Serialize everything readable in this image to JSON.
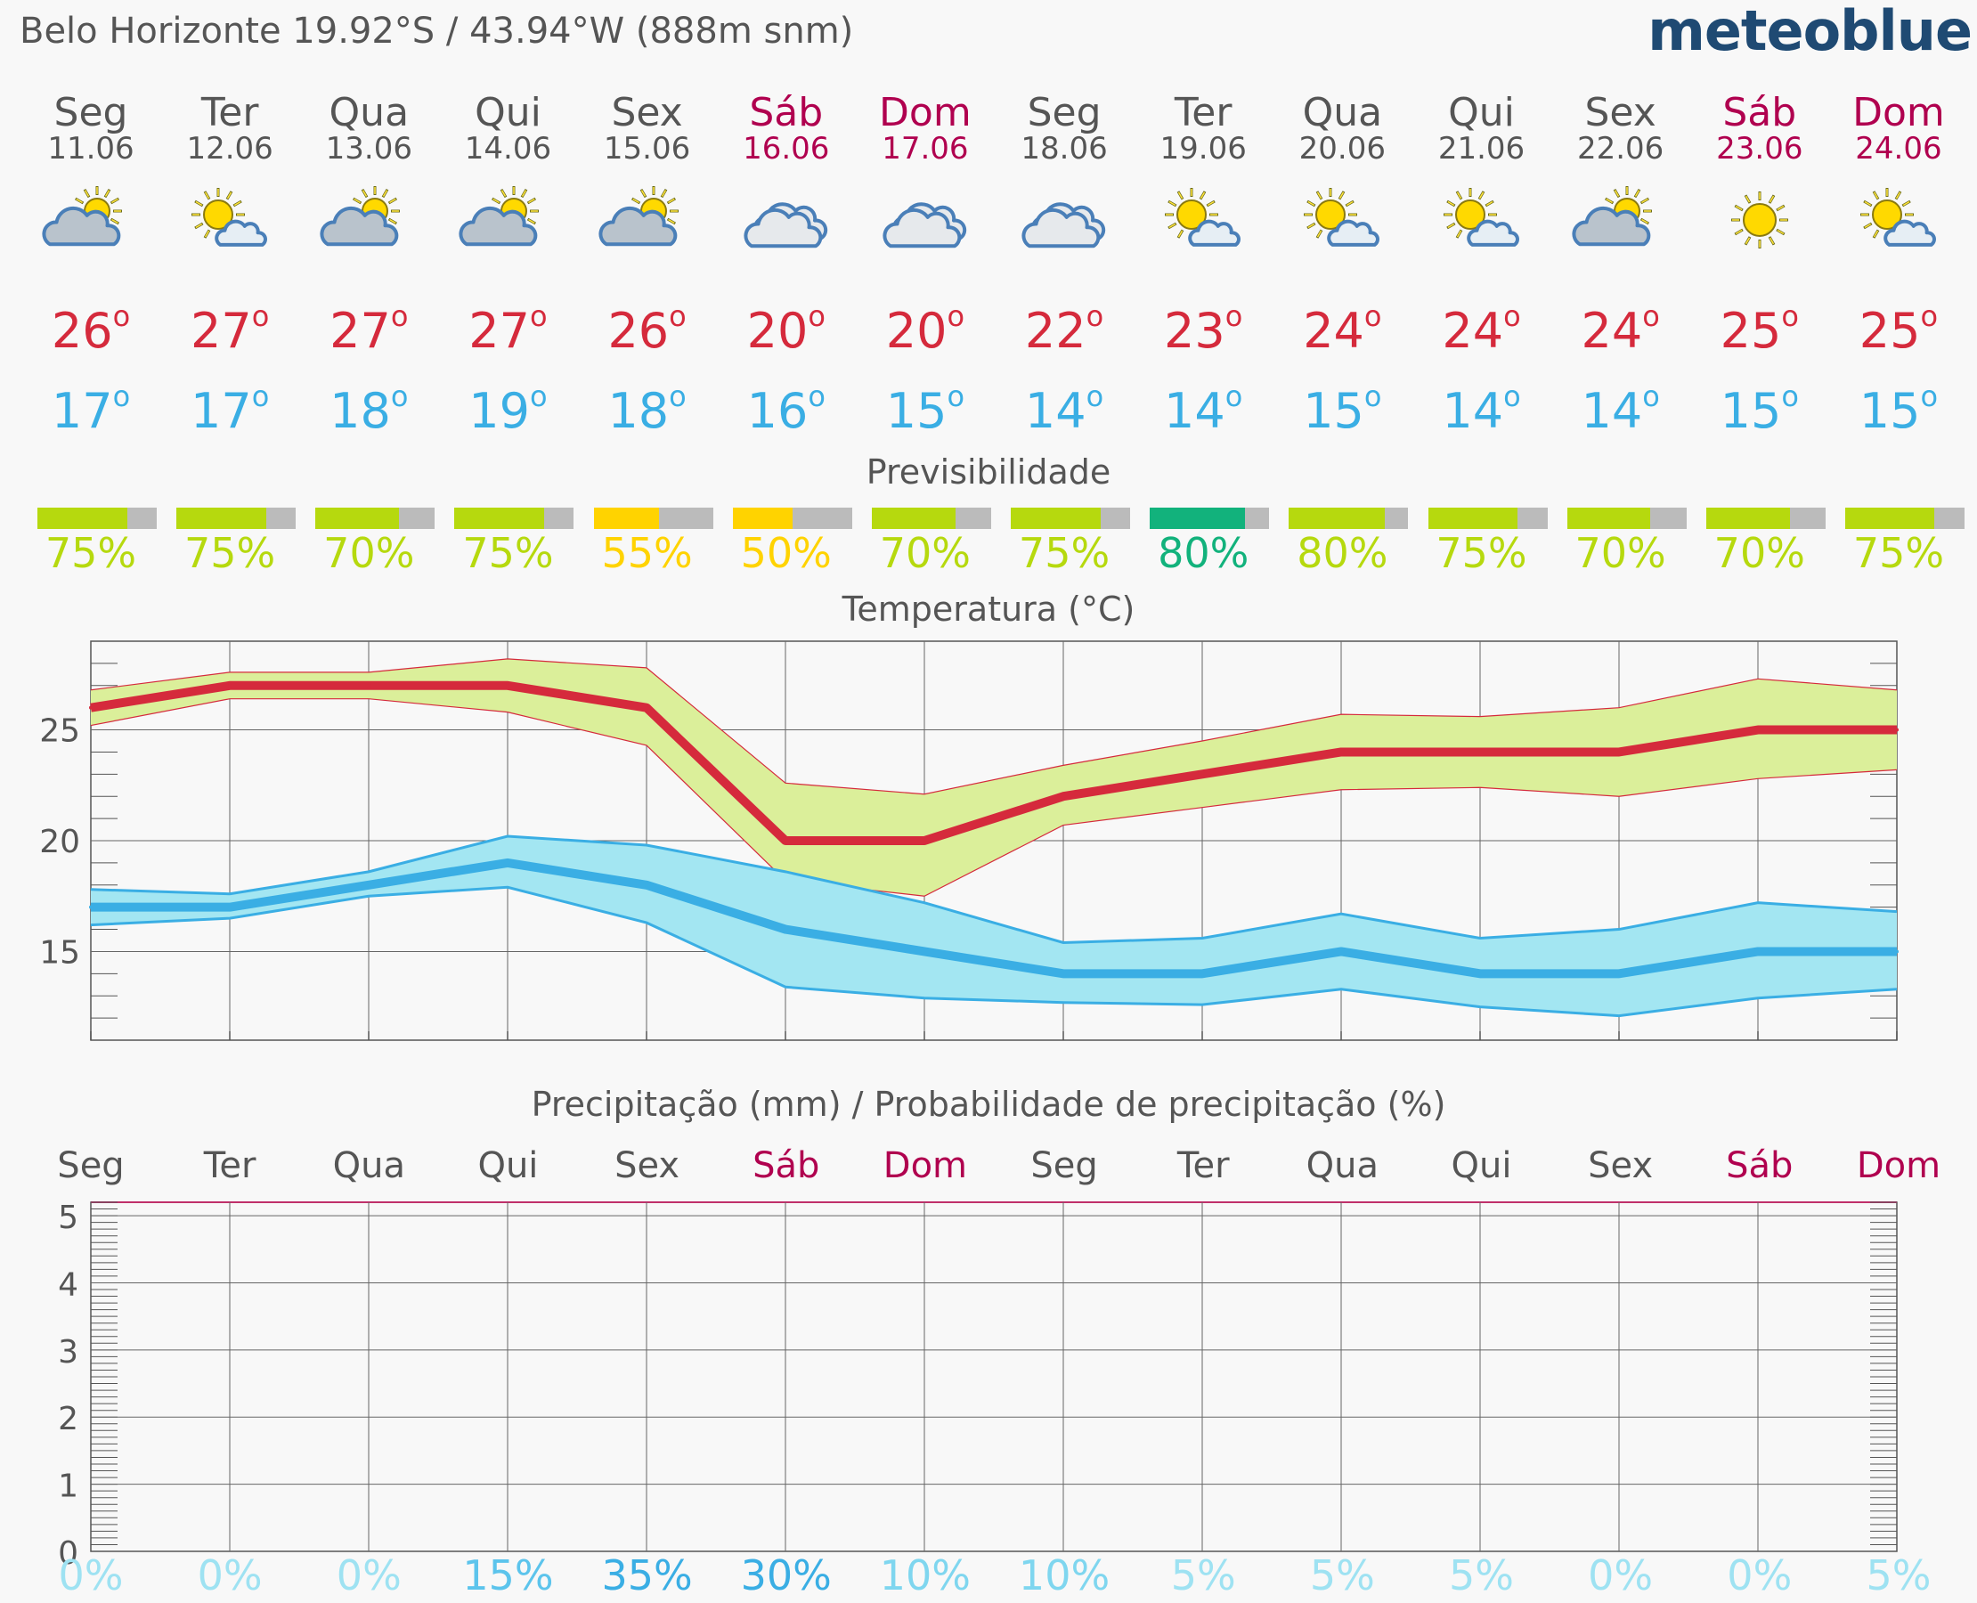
{
  "header": {
    "location": "Belo Horizonte  19.92°S / 43.94°W (888m snm)",
    "brand": "meteoblue"
  },
  "colors": {
    "weekend": "#b0004f",
    "tmax": "#d52a3c",
    "tmin": "#3aaee4",
    "brand": "#1f4a73"
  },
  "days": [
    {
      "name": "Seg",
      "date": "11.06",
      "weekend": false,
      "icon": "partly-cloudy-sun-icon",
      "tmax": "26",
      "tmin": "17",
      "predict": "75%",
      "predict_value": 75,
      "predict_color": "#b6d90e",
      "rain_prob": "0%"
    },
    {
      "name": "Ter",
      "date": "12.06",
      "weekend": false,
      "icon": "sun-small-cloud-icon",
      "tmax": "27",
      "tmin": "17",
      "predict": "75%",
      "predict_value": 75,
      "predict_color": "#b6d90e",
      "rain_prob": "0%"
    },
    {
      "name": "Qua",
      "date": "13.06",
      "weekend": false,
      "icon": "partly-cloudy-sun-icon",
      "tmax": "27",
      "tmin": "18",
      "predict": "70%",
      "predict_value": 70,
      "predict_color": "#b6d90e",
      "rain_prob": "0%"
    },
    {
      "name": "Qui",
      "date": "14.06",
      "weekend": false,
      "icon": "partly-cloudy-sun-icon",
      "tmax": "27",
      "tmin": "19",
      "predict": "75%",
      "predict_value": 75,
      "predict_color": "#b6d90e",
      "rain_prob": "15%"
    },
    {
      "name": "Sex",
      "date": "15.06",
      "weekend": false,
      "icon": "partly-cloudy-sun-icon",
      "tmax": "26",
      "tmin": "18",
      "predict": "55%",
      "predict_value": 55,
      "predict_color": "#ffd300",
      "rain_prob": "35%"
    },
    {
      "name": "Sáb",
      "date": "16.06",
      "weekend": true,
      "icon": "cloudy-icon",
      "tmax": "20",
      "tmin": "16",
      "predict": "50%",
      "predict_value": 50,
      "predict_color": "#ffd300",
      "rain_prob": "30%"
    },
    {
      "name": "Dom",
      "date": "17.06",
      "weekend": true,
      "icon": "cloudy-icon",
      "tmax": "20",
      "tmin": "15",
      "predict": "70%",
      "predict_value": 70,
      "predict_color": "#b6d90e",
      "rain_prob": "10%"
    },
    {
      "name": "Seg",
      "date": "18.06",
      "weekend": false,
      "icon": "cloudy-icon",
      "tmax": "22",
      "tmin": "14",
      "predict": "75%",
      "predict_value": 75,
      "predict_color": "#b6d90e",
      "rain_prob": "10%"
    },
    {
      "name": "Ter",
      "date": "19.06",
      "weekend": false,
      "icon": "sun-small-cloud-icon",
      "tmax": "23",
      "tmin": "14",
      "predict": "80%",
      "predict_value": 80,
      "predict_color": "#12b27c",
      "rain_prob": "5%"
    },
    {
      "name": "Qua",
      "date": "20.06",
      "weekend": false,
      "icon": "sun-small-cloud-icon",
      "tmax": "24",
      "tmin": "15",
      "predict": "80%",
      "predict_value": 80,
      "predict_color": "#b6d90e",
      "rain_prob": "5%"
    },
    {
      "name": "Qui",
      "date": "21.06",
      "weekend": false,
      "icon": "sun-small-cloud-icon",
      "tmax": "24",
      "tmin": "14",
      "predict": "75%",
      "predict_value": 75,
      "predict_color": "#b6d90e",
      "rain_prob": "5%"
    },
    {
      "name": "Sex",
      "date": "22.06",
      "weekend": false,
      "icon": "partly-cloudy-sun-icon",
      "tmax": "24",
      "tmin": "14",
      "predict": "70%",
      "predict_value": 70,
      "predict_color": "#b6d90e",
      "rain_prob": "0%"
    },
    {
      "name": "Sáb",
      "date": "23.06",
      "weekend": true,
      "icon": "sunny-icon",
      "tmax": "25",
      "tmin": "15",
      "predict": "70%",
      "predict_value": 70,
      "predict_color": "#b6d90e",
      "rain_prob": "0%"
    },
    {
      "name": "Dom",
      "date": "24.06",
      "weekend": true,
      "icon": "sun-small-cloud-icon",
      "tmax": "25",
      "tmin": "15",
      "predict": "75%",
      "predict_value": 75,
      "predict_color": "#b6d90e",
      "rain_prob": "5%"
    }
  ],
  "sections": {
    "predictability_title": "Previsibilidade",
    "temperature_title": "Temperatura (°C)",
    "precip_title": "Precipitação (mm) / Probabilidade de precipitação (%)"
  },
  "chart_data": [
    {
      "type": "line",
      "title": "Temperatura (°C)",
      "categories": [
        "11.06",
        "12.06",
        "13.06",
        "14.06",
        "15.06",
        "16.06",
        "17.06",
        "18.06",
        "19.06",
        "20.06",
        "21.06",
        "22.06",
        "23.06",
        "24.06"
      ],
      "yticks": [
        15,
        20,
        25
      ],
      "ylim": [
        11,
        29
      ],
      "grid": true,
      "series": [
        {
          "values": [
            26,
            27,
            27,
            27,
            26,
            20,
            20,
            22,
            23,
            24,
            24,
            24,
            25,
            25
          ],
          "color": "#d52a3c",
          "band_color": "#dbef9a"
        },
        {
          "values": [
            25.2,
            26.4,
            26.4,
            25.8,
            24.3,
            18.2,
            17.5,
            20.7,
            21.5,
            22.3,
            22.4,
            22.0,
            22.8,
            23.2
          ],
          "color": "#d52a3c"
        },
        {
          "values": [
            26.8,
            27.6,
            27.6,
            28.2,
            27.8,
            22.6,
            22.1,
            23.4,
            24.5,
            25.7,
            25.6,
            26.0,
            27.3,
            26.8
          ],
          "color": "#d52a3c"
        },
        {
          "values": [
            17,
            17,
            18,
            19,
            18,
            16,
            15,
            14,
            14,
            15,
            14,
            14,
            15,
            15
          ],
          "color": "#3aaee4",
          "band_color": "#a3e6f2"
        },
        {
          "values": [
            16.2,
            16.5,
            17.5,
            17.9,
            16.3,
            13.4,
            12.9,
            12.7,
            12.6,
            13.3,
            12.5,
            12.1,
            12.9,
            13.3
          ],
          "color": "#3aaee4"
        },
        {
          "values": [
            17.8,
            17.6,
            18.6,
            20.2,
            19.8,
            18.6,
            17.2,
            15.4,
            15.6,
            16.7,
            15.6,
            16.0,
            17.2,
            16.8
          ],
          "color": "#3aaee4"
        }
      ]
    },
    {
      "type": "bar",
      "title": "Precipitação (mm) / Probabilidade de precipitação (%)",
      "categories": [
        "Seg",
        "Ter",
        "Qua",
        "Qui",
        "Sex",
        "Sáb",
        "Dom",
        "Seg",
        "Ter",
        "Qua",
        "Qui",
        "Sex",
        "Sáb",
        "Dom"
      ],
      "values": [
        0,
        0,
        0,
        0,
        0,
        0,
        0,
        0,
        0,
        0,
        0,
        0,
        0,
        0
      ],
      "yticks": [
        0,
        1,
        2,
        3,
        4,
        5
      ],
      "ylim": [
        0,
        5.2
      ],
      "probability": [
        "0%",
        "0%",
        "0%",
        "15%",
        "35%",
        "30%",
        "10%",
        "10%",
        "5%",
        "5%",
        "5%",
        "0%",
        "0%",
        "5%"
      ],
      "grid": true
    }
  ]
}
